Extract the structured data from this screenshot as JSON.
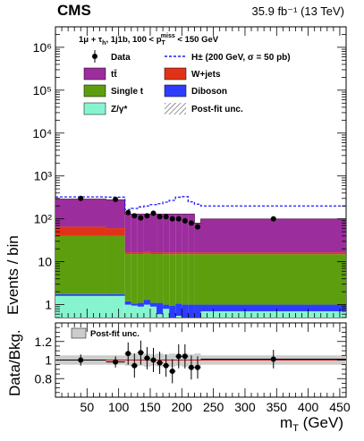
{
  "header": {
    "experiment": "CMS",
    "luminosity": "35.9 fb⁻¹ (13 TeV)"
  },
  "chart_data": [
    {
      "type": "bar",
      "panel": "main",
      "ylabel": "Events / bin",
      "yscale": "log",
      "ylim": [
        0.5,
        3000000
      ],
      "xlim": [
        0,
        460
      ],
      "selection_text": "1μ + τh, 1j1b, 100 < pTmiss < 150 GeV",
      "y_tick_labels": [
        "1",
        "10",
        "10²",
        "10³",
        "10⁴",
        "10⁵",
        "10⁶"
      ],
      "legend": [
        {
          "name": "Data",
          "kind": "marker",
          "color": "#000000"
        },
        {
          "name": "H± (200 GeV, σ = 50 pb)",
          "kind": "dashed",
          "color": "#1a1aff"
        },
        {
          "name": "tt̄",
          "kind": "fill",
          "color": "#9c2d9c"
        },
        {
          "name": "W+jets",
          "kind": "fill",
          "color": "#e13218"
        },
        {
          "name": "Single t",
          "kind": "fill",
          "color": "#5d9e0f"
        },
        {
          "name": "Diboson",
          "kind": "fill",
          "color": "#2d3dff"
        },
        {
          "name": "Z/γ*",
          "kind": "fill",
          "color": "#86f5cf"
        },
        {
          "name": "Post-fit unc.",
          "kind": "hatch",
          "color": "#555555"
        }
      ],
      "bins": [
        [
          0,
          80
        ],
        [
          80,
          110
        ],
        [
          110,
          120
        ],
        [
          120,
          130
        ],
        [
          130,
          140
        ],
        [
          140,
          150
        ],
        [
          150,
          160
        ],
        [
          160,
          170
        ],
        [
          170,
          180
        ],
        [
          180,
          190
        ],
        [
          190,
          200
        ],
        [
          200,
          210
        ],
        [
          210,
          220
        ],
        [
          220,
          230
        ],
        [
          230,
          460
        ]
      ],
      "stack": [
        {
          "name": "Z/γ*",
          "color": "#86f5cf",
          "values": [
            1.6,
            1.6,
            1.0,
            0.95,
            0.9,
            1.0,
            0.9,
            0.6,
            0.8,
            0.45,
            0.55,
            0.5,
            0.5,
            0.5,
            0.7
          ]
        },
        {
          "name": "Diboson",
          "color": "#2d3dff",
          "values": [
            0.15,
            0.15,
            0.2,
            0.1,
            0.2,
            0.3,
            0.2,
            0.5,
            0.2,
            0.5,
            0.5,
            0.5,
            0.5,
            0.5,
            0.3
          ]
        },
        {
          "name": "Single t",
          "color": "#5d9e0f",
          "values": [
            38,
            38,
            14,
            14,
            14,
            14,
            14,
            14,
            14,
            14,
            14,
            14,
            14,
            14,
            14
          ]
        },
        {
          "name": "W+jets",
          "color": "#e13218",
          "values": [
            26,
            21,
            1.5,
            1.5,
            1.5,
            1.5,
            1.5,
            1.5,
            1.5,
            1.5,
            1.5,
            1.5,
            1.5,
            1.5,
            1.5
          ]
        },
        {
          "name": "tt̄",
          "color": "#9c2d9c",
          "values": [
            224,
            219,
            113,
            113,
            113,
            113,
            113,
            113,
            113,
            113,
            113,
            113,
            113,
            63,
            83
          ]
        }
      ],
      "signal": {
        "name": "H± (200 GeV, σ = 50 pb)",
        "values": [
          325,
          320,
          165,
          175,
          190,
          200,
          215,
          225,
          245,
          270,
          320,
          330,
          250,
          220,
          200
        ]
      },
      "data": {
        "x": [
          40,
          95,
          115,
          125,
          135,
          145,
          155,
          165,
          175,
          185,
          195,
          205,
          215,
          225,
          345
        ],
        "y": [
          300,
          285,
          140,
          118,
          105,
          118,
          135,
          112,
          112,
          100,
          100,
          90,
          80,
          65,
          100
        ]
      }
    },
    {
      "type": "scatter",
      "panel": "ratio",
      "ylabel": "Data/Bkg.",
      "xlabel": "mT (GeV)",
      "xlim": [
        0,
        460
      ],
      "ylim": [
        0.6,
        1.4
      ],
      "legend": [
        {
          "name": "Post-fit unc.",
          "kind": "fill",
          "color": "#cccccc"
        }
      ],
      "x_tick_labels": [
        "50",
        "100",
        "150",
        "200",
        "250",
        "300",
        "350",
        "400",
        "450"
      ],
      "x_ticks": [
        50,
        100,
        150,
        200,
        250,
        300,
        350,
        400,
        450
      ],
      "y_tick_labels": [
        "0.8",
        "1",
        "1.2"
      ],
      "y_ticks": [
        0.8,
        1.0,
        1.2
      ],
      "points": {
        "x": [
          40,
          95,
          115,
          125,
          135,
          145,
          155,
          165,
          175,
          185,
          195,
          205,
          215,
          225,
          345
        ],
        "y": [
          1.0,
          0.98,
          1.07,
          0.94,
          1.08,
          1.02,
          1.0,
          0.97,
          0.94,
          0.88,
          1.04,
          1.04,
          0.92,
          0.92,
          1.01
        ],
        "err": [
          0.06,
          0.06,
          0.12,
          0.13,
          0.13,
          0.12,
          0.13,
          0.12,
          0.12,
          0.13,
          0.13,
          0.13,
          0.13,
          0.12,
          0.1
        ]
      },
      "uncertainty_band": [
        0.05,
        0.05,
        0.06,
        0.07,
        0.06,
        0.07,
        0.06,
        0.07,
        0.06,
        0.07,
        0.06,
        0.07,
        0.06,
        0.07,
        0.05
      ],
      "reference_line": 1.0
    }
  ]
}
